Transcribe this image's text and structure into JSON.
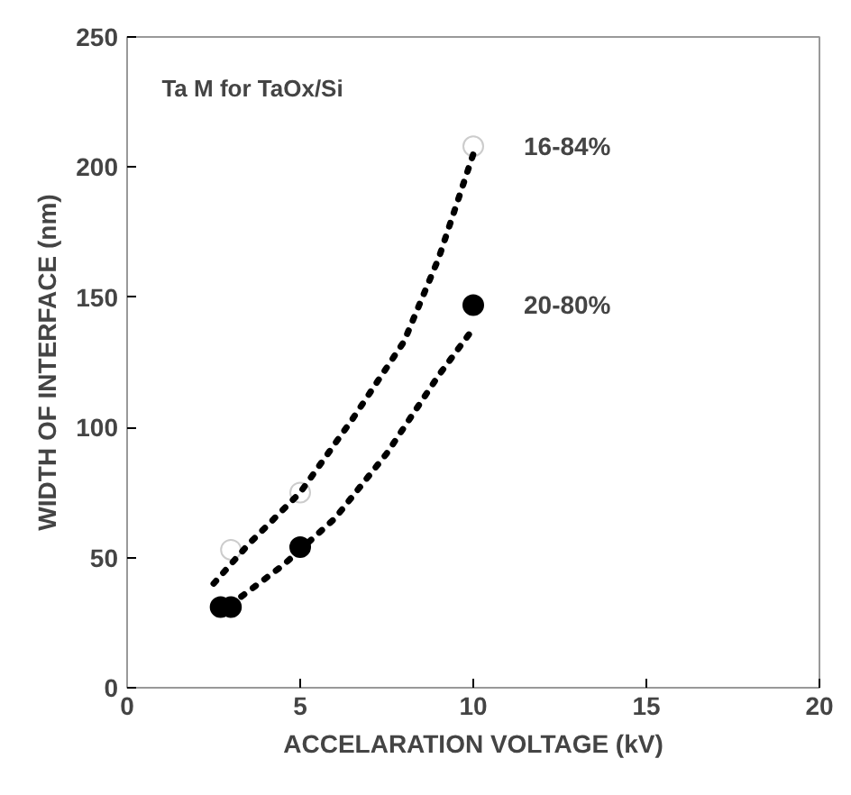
{
  "chart_data": {
    "type": "scatter",
    "xlabel": "ACCELARATION VOLTAGE (kV)",
    "ylabel": "WIDTH OF INTERFACE (nm)",
    "annotations": [
      "Ta M for TaOx/Si"
    ],
    "xlim": [
      0,
      20
    ],
    "ylim": [
      0,
      250
    ],
    "xticks": [
      0,
      5,
      10,
      15,
      20
    ],
    "yticks": [
      0,
      50,
      100,
      150,
      200,
      250
    ],
    "grid": false,
    "series": [
      {
        "name": "16-84%",
        "marker": "circle",
        "color": "#ffffff",
        "x": [
          3,
          5,
          10
        ],
        "values": [
          53,
          75,
          208
        ]
      },
      {
        "name": "20-80%",
        "marker": "circle",
        "color": "#000000",
        "x": [
          2.7,
          3,
          5,
          10
        ],
        "values": [
          31,
          31,
          54,
          147
        ]
      },
      {
        "type": "line",
        "marker": "none",
        "line_style": "dotted",
        "color": "#000000",
        "x": [
          2.5,
          3.5,
          5,
          6.5,
          8,
          9,
          10
        ],
        "values": [
          40,
          55,
          75,
          103,
          133,
          165,
          205
        ]
      },
      {
        "type": "line",
        "marker": "none",
        "line_style": "dotted",
        "color": "#000000",
        "x": [
          3.3,
          4.5,
          6,
          7.5,
          9,
          10
        ],
        "values": [
          35,
          47,
          65,
          90,
          120,
          138
        ]
      }
    ]
  }
}
